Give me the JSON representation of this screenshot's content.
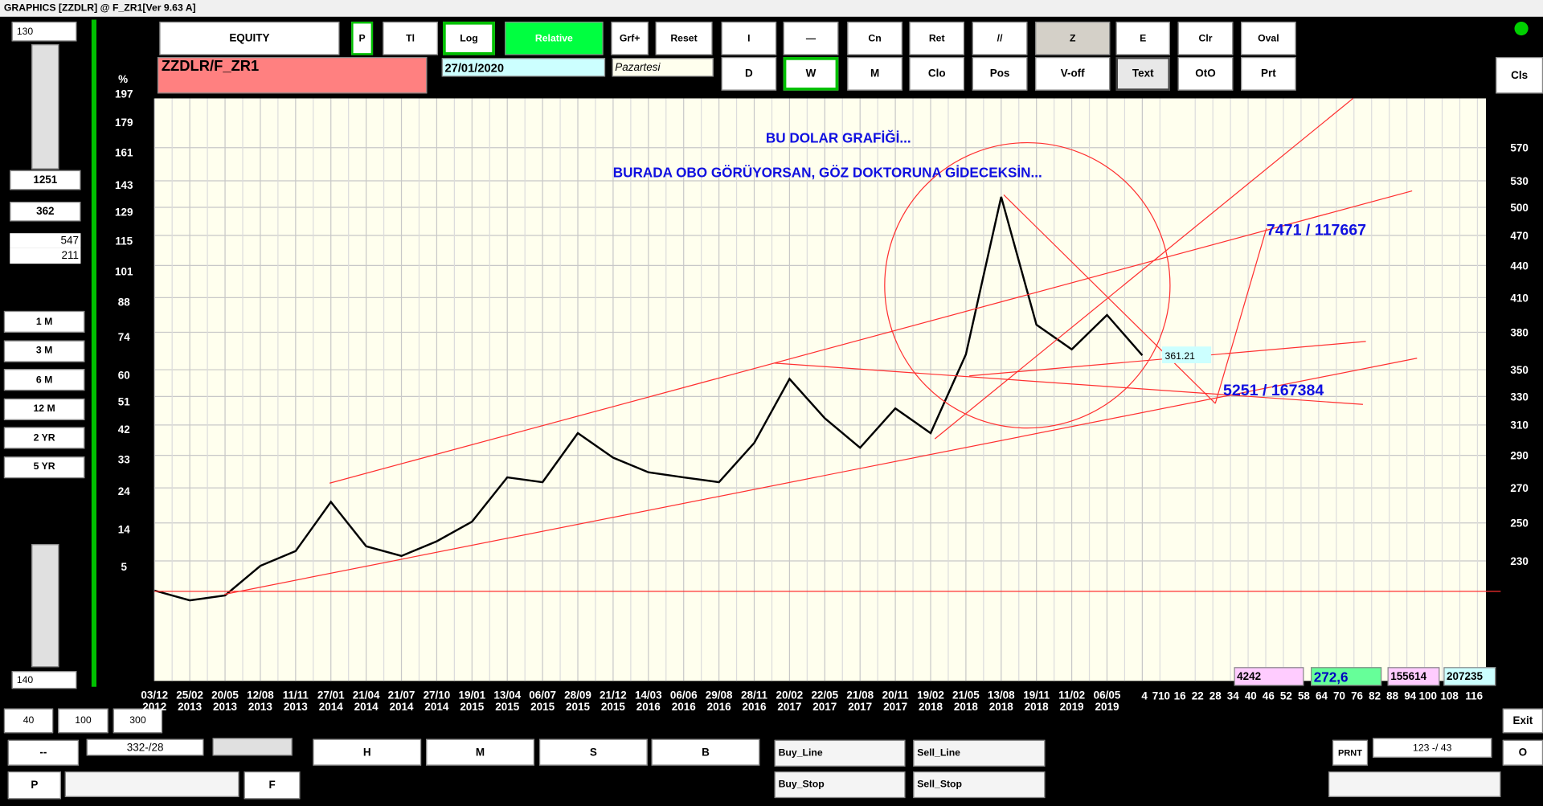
{
  "window": {
    "title": "GRAPHICS  [ZZDLR] @ F_ZR1[Ver 9.63 A]"
  },
  "toolbar": {
    "row1": [
      "EQUITY",
      "P",
      "Tl",
      "Log",
      "Relative",
      "Grf+",
      "Reset",
      "I",
      "—",
      "Cn",
      "Ret",
      "//",
      "Z",
      "E",
      "Clr",
      "Oval"
    ],
    "row2": [
      "D",
      "W",
      "M",
      "Clo",
      "Pos",
      "V-off",
      "Text",
      "OtO",
      "Prt"
    ],
    "cls": "Cls"
  },
  "header": {
    "symbol": "ZZDLR/F_ZR1",
    "date": "27/01/2020",
    "weekday": "Pazartesi"
  },
  "left_panel": {
    "top_value": "130",
    "value1": "1251",
    "value2": "362",
    "value3": "547",
    "value4": "211",
    "periods": [
      "1 M",
      "3 M",
      "6 M",
      "12 M",
      "2 YR",
      "5 YR"
    ],
    "bottom_value": "140",
    "zoom": [
      "40",
      "100",
      "300"
    ]
  },
  "bottom_bar": {
    "dash": "--",
    "position": "332-/28",
    "p": "P",
    "f": "F",
    "hmsb": [
      "H",
      "M",
      "S",
      "B"
    ],
    "orders": [
      "Buy_Line",
      "Sell_Line",
      "Buy_Stop",
      "Sell_Stop"
    ],
    "prnt": "PRNT",
    "counter": "123 -/ 43",
    "exit": "Exit",
    "o": "O"
  },
  "info_boxes": [
    "4242",
    "272,6",
    "155614",
    "207235"
  ],
  "chart_data": {
    "type": "line",
    "y_axis_label": "%",
    "annotations": [
      "BU DOLAR  GRAFİĞİ...",
      "BURADA OBO  GÖRÜYORSAN, GÖZ DOKTORUNA GİDECEKSİN...",
      "7471 / 117667",
      "5251 / 167384"
    ],
    "categories": [
      "03/12 2012",
      "25/02 2013",
      "20/05 2013",
      "12/08 2013",
      "11/11 2013",
      "27/01 2014",
      "21/04 2014",
      "21/07 2014",
      "27/10 2014",
      "19/01 2015",
      "13/04 2015",
      "06/07 2015",
      "28/09 2015",
      "21/12 2015",
      "14/03 2016",
      "06/06 2016",
      "29/08 2016",
      "28/11 2016",
      "20/02 2017",
      "22/05 2017",
      "21/08 2017",
      "20/11 2017",
      "19/02 2018",
      "21/05 2018",
      "13/08 2018",
      "19/11 2018",
      "11/02 2019",
      "06/05 2019",
      null
    ],
    "x_extension_labels": [
      "4",
      "7",
      "10",
      "16",
      "22",
      "28",
      "34",
      "40",
      "46",
      "52",
      "58",
      "64",
      "70",
      "76",
      "82",
      "88",
      "94",
      "100",
      "108",
      "116"
    ],
    "series": [
      {
        "color": "#000000",
        "axis": "y2",
        "values": [
          215.5,
          210.9,
          213.2,
          227.5,
          235,
          261.8,
          237.5,
          232.5,
          240.1,
          250.7,
          276.3,
          273.4,
          304.5,
          288.5,
          279.4,
          276.3,
          273.4,
          298,
          343,
          314.6,
          294.9,
          321.5,
          304.5,
          362,
          511.6,
          386.3,
          366,
          394.7,
          361.21
        ]
      }
    ],
    "y_scale": "log-relative",
    "ylim": [
      -18.3,
      193.9
    ],
    "yticks": [
      197,
      179,
      161,
      143,
      129,
      115,
      101,
      88,
      74,
      60,
      51,
      42,
      33,
      24,
      14,
      5
    ],
    "y2_scale": "log",
    "y2lim": [
      176.7,
      635.1
    ],
    "y2ticks": [
      570,
      530,
      500,
      470,
      440,
      410,
      380,
      350,
      330,
      310,
      290,
      270,
      250,
      230
    ],
    "grid": true
  }
}
